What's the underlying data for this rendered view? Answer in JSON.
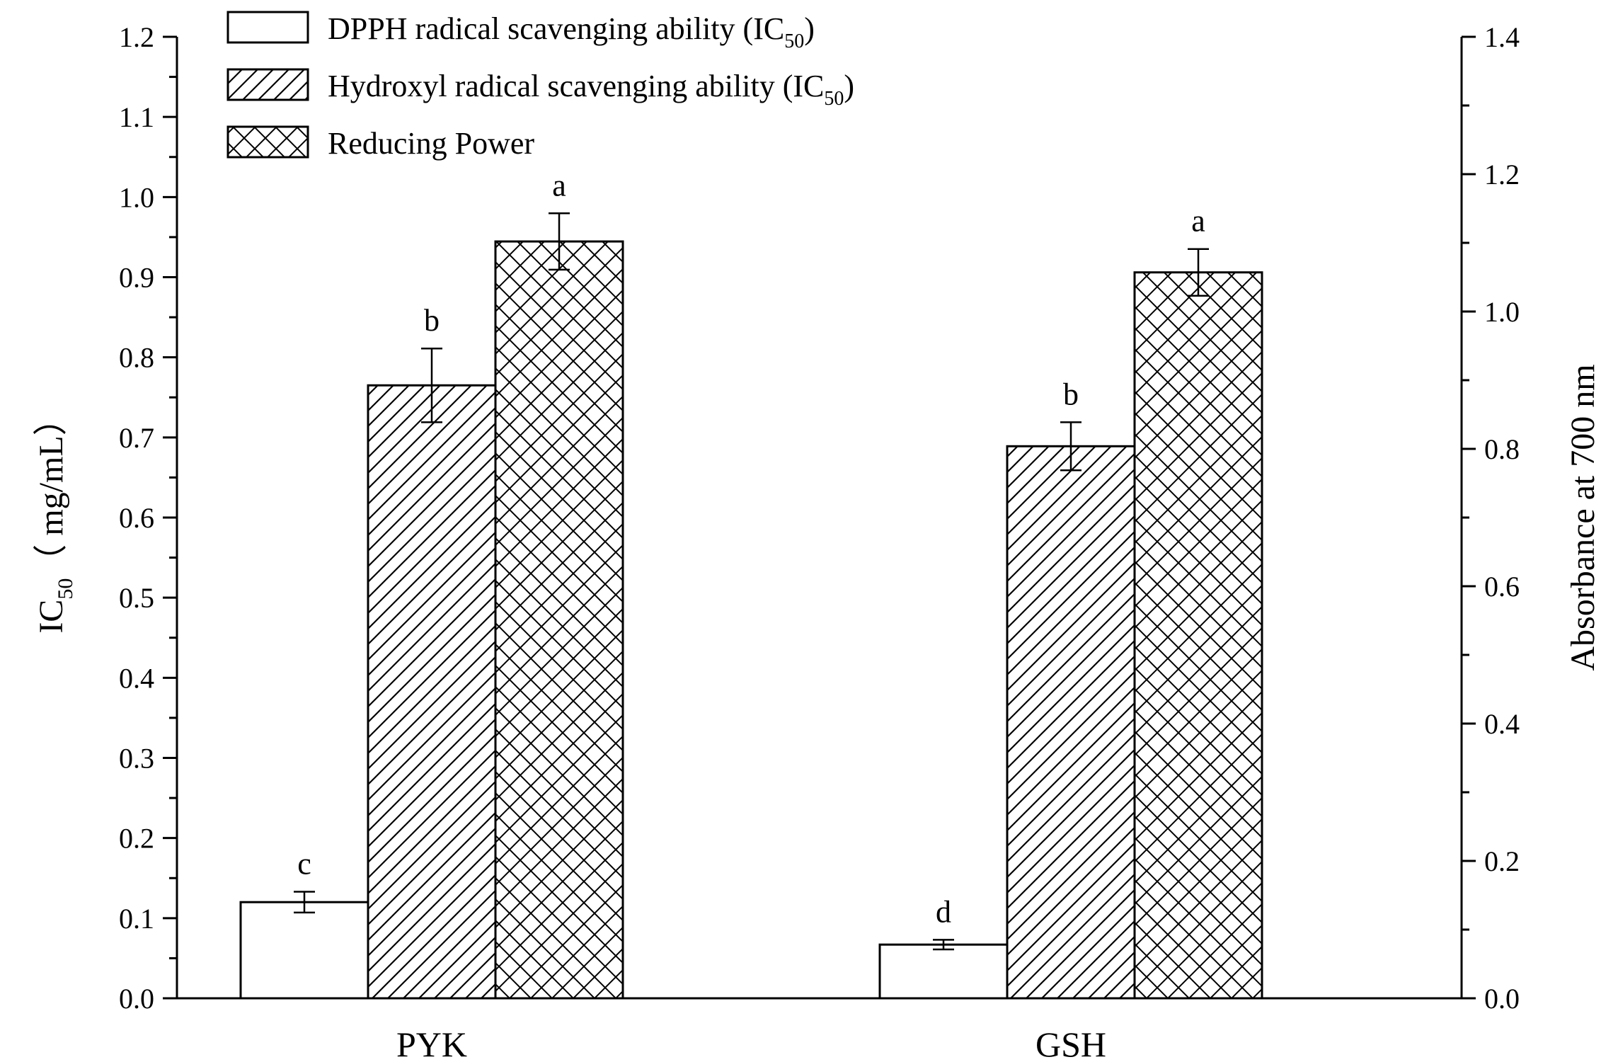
{
  "chart_data": {
    "type": "bar",
    "categories": [
      "PYK",
      "GSH"
    ],
    "series": [
      {
        "name": "DPPH radical scavenging ability (IC50)",
        "legend_main": "DPPH radical scavenging ability (IC",
        "legend_sub": "50",
        "legend_end": ")",
        "axis": "left",
        "pattern": "none",
        "values": [
          0.12,
          0.067
        ],
        "errors": [
          0.013,
          0.006
        ],
        "letters": [
          "c",
          "d"
        ]
      },
      {
        "name": "Hydroxyl radical scavenging ability (IC50)",
        "legend_main": "Hydroxyl radical scavenging ability (IC",
        "legend_sub": "50",
        "legend_end": ")",
        "axis": "left",
        "pattern": "diagonal",
        "values": [
          0.765,
          0.689
        ],
        "errors": [
          0.046,
          0.03
        ],
        "letters": [
          "b",
          "b"
        ]
      },
      {
        "name": "Reducing Power",
        "legend_main": "Reducing Power",
        "legend_sub": "",
        "legend_end": "",
        "axis": "right",
        "pattern": "crosshatch",
        "values": [
          1.102,
          1.057
        ],
        "errors": [
          0.041,
          0.034
        ],
        "letters": [
          "a",
          "a"
        ]
      }
    ],
    "left_axis": {
      "label_main": "IC",
      "label_sub": "50",
      "label_end": "（ mg/mL）",
      "ylim": [
        0,
        1.2
      ],
      "ticks": [
        "0.0",
        "0.1",
        "0.2",
        "0.3",
        "0.4",
        "0.5",
        "0.6",
        "0.7",
        "0.8",
        "0.9",
        "1.0",
        "1.1",
        "1.2"
      ]
    },
    "right_axis": {
      "label": "Absorbance at 700 nm",
      "ylim": [
        0,
        1.4
      ],
      "ticks": [
        "0.0",
        "0.2",
        "0.4",
        "0.6",
        "0.8",
        "1.0",
        "1.2",
        "1.4"
      ]
    },
    "legend_position": "top-left",
    "grid": false
  }
}
